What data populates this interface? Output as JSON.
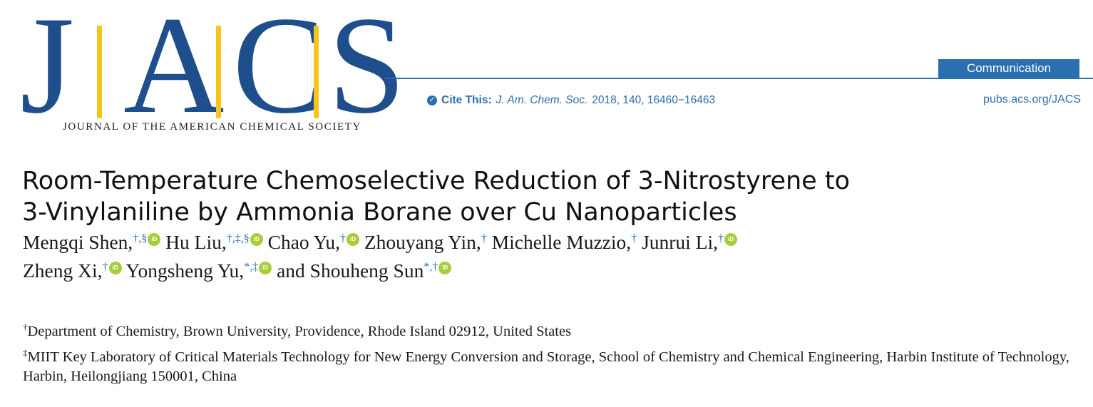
{
  "masthead": {
    "logo_letters": [
      "J",
      "A",
      "C",
      "S"
    ],
    "logo_subtitle": "JOURNAL OF THE AMERICAN CHEMICAL SOCIETY",
    "article_type": "Communication",
    "cite_label": "Cite This:",
    "cite_journal": "J. Am. Chem. Soc.",
    "cite_rest": "2018, 140, 16460−16463",
    "url": "pubs.acs.org/JACS",
    "colors": {
      "brand_blue": "#1f4e8c",
      "accent_blue": "#2a6fb0",
      "gold": "#f5c518",
      "orcid_green": "#a6ce39"
    }
  },
  "article": {
    "title_line1": "Room-Temperature Chemoselective Reduction of 3-Nitrostyrene to",
    "title_line2": "3-Vinylaniline by Ammonia Borane over Cu Nanoparticles"
  },
  "authors": [
    {
      "name": "Mengqi Shen,",
      "marks": "†,§",
      "orcid": true
    },
    {
      "name": "Hu Liu,",
      "marks": "†,‡,§",
      "orcid": true
    },
    {
      "name": "Chao Yu,",
      "marks": "†",
      "orcid": true
    },
    {
      "name": "Zhouyang Yin,",
      "marks": "†",
      "orcid": false
    },
    {
      "name": "Michelle Muzzio,",
      "marks": "†",
      "orcid": false
    },
    {
      "name": "Junrui Li,",
      "marks": "†",
      "orcid": true
    },
    {
      "name": "Zheng Xi,",
      "marks": "†",
      "orcid": true
    },
    {
      "name": "Yongsheng Yu,",
      "marks": "*,‡",
      "orcid": true
    },
    {
      "name": "and Shouheng Sun",
      "marks": "*,†",
      "orcid": true
    }
  ],
  "orcid_icon_label": "iD",
  "affiliations": [
    {
      "mark": "†",
      "text": "Department of Chemistry, Brown University, Providence, Rhode Island 02912, United States"
    },
    {
      "mark": "‡",
      "text": "MIIT Key Laboratory of Critical Materials Technology for New Energy Conversion and Storage, School of Chemistry and Chemical Engineering, Harbin Institute of Technology, Harbin, Heilongjiang 150001, China"
    }
  ]
}
